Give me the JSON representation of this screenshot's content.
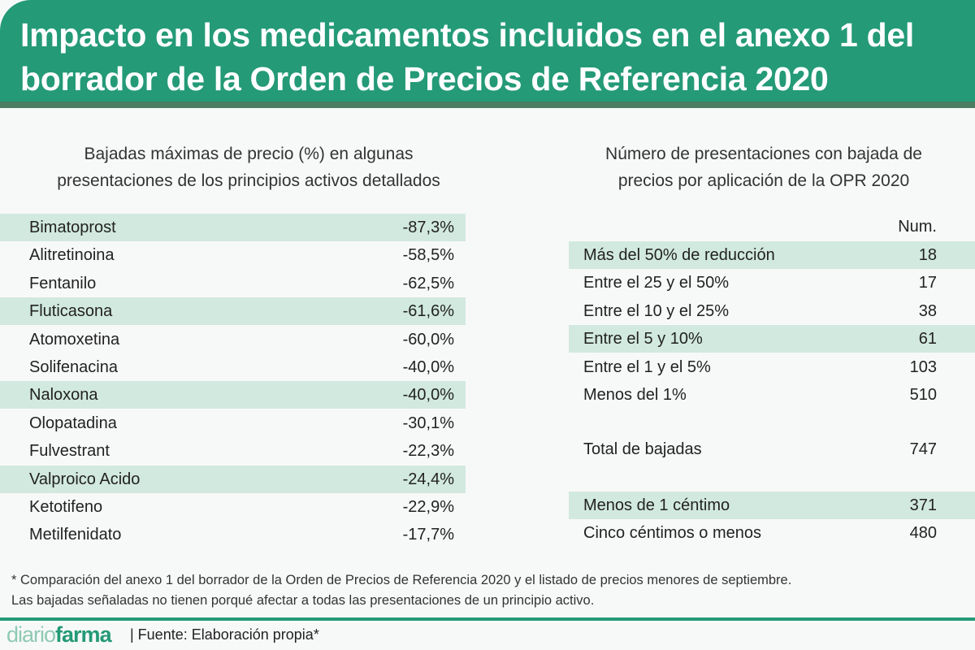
{
  "title_lines": [
    "Impacto en los medicamentos incluidos en el anexo 1 del",
    "borrador de la Orden de Precios de Referencia 2020"
  ],
  "left": {
    "subtitle_lines": [
      "Bajadas máximas de precio (%) en algunas",
      "presentaciones de los principios activos detallados"
    ],
    "rows": [
      {
        "name": "Bimatoprost",
        "value": "-87,3%",
        "highlight": true
      },
      {
        "name": "Alitretinoina",
        "value": "-58,5%",
        "highlight": false
      },
      {
        "name": "Fentanilo",
        "value": "-62,5%",
        "highlight": false
      },
      {
        "name": "Fluticasona",
        "value": "-61,6%",
        "highlight": true
      },
      {
        "name": "Atomoxetina",
        "value": "-60,0%",
        "highlight": false
      },
      {
        "name": "Solifenacina",
        "value": "-40,0%",
        "highlight": false
      },
      {
        "name": "Naloxona",
        "value": "-40,0%",
        "highlight": true
      },
      {
        "name": "Olopatadina",
        "value": "-30,1%",
        "highlight": false
      },
      {
        "name": "Fulvestrant",
        "value": "-22,3%",
        "highlight": false
      },
      {
        "name": "Valproico Acido",
        "value": "-24,4%",
        "highlight": true
      },
      {
        "name": "Ketotifeno",
        "value": "-22,9%",
        "highlight": false
      },
      {
        "name": "Metilfenidato",
        "value": "-17,7%",
        "highlight": false
      }
    ]
  },
  "right": {
    "subtitle_lines": [
      "Número de presentaciones con bajada de",
      "precios por aplicación de la OPR 2020"
    ],
    "column_header": "Num.",
    "rows": [
      {
        "name": "Más del 50% de reducción",
        "value": "18",
        "highlight": true
      },
      {
        "name": "Entre el 25 y el 50%",
        "value": "17",
        "highlight": false
      },
      {
        "name": "Entre el 10 y el 25%",
        "value": "38",
        "highlight": false
      },
      {
        "name": "Entre el 5 y 10%",
        "value": "61",
        "highlight": true
      },
      {
        "name": "Entre el 1 y el 5%",
        "value": "103",
        "highlight": false
      },
      {
        "name": "Menos del 1%",
        "value": "510",
        "highlight": false
      }
    ],
    "total": {
      "name": "Total de bajadas",
      "value": "747"
    },
    "extra": [
      {
        "name": "Menos de 1 céntimo",
        "value": "371",
        "highlight": true
      },
      {
        "name": "Cinco céntimos o menos",
        "value": "480",
        "highlight": false
      }
    ]
  },
  "footnote_lines": [
    "* Comparación del anexo 1 del borrador de la Orden de Precios de Referencia 2020 y el listado de precios menores de septiembre.",
    "Las bajadas señaladas no tienen porqué afectar a todas las presentaciones de un principio activo."
  ],
  "brand": {
    "part1": "diario",
    "part2": "farma"
  },
  "source": "| Fuente: Elaboración propia*",
  "colors": {
    "brand_green": "#249a77",
    "row_highlight": "#d2e9df"
  }
}
